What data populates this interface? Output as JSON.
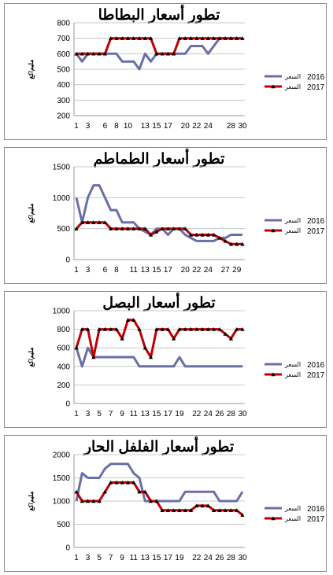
{
  "chart_data": [
    {
      "type": "line",
      "title": "تطور أسعار البطاطا",
      "ylabel": "مليم/كغ",
      "ylim": [
        200,
        800
      ],
      "yticks": [
        200,
        300,
        400,
        500,
        600,
        700,
        800
      ],
      "x": [
        1,
        2,
        3,
        4,
        5,
        6,
        7,
        8,
        9,
        10,
        11,
        12,
        13,
        14,
        15,
        16,
        17,
        18,
        19,
        20,
        21,
        22,
        23,
        24,
        25,
        26,
        27,
        28,
        29,
        30
      ],
      "xtick_labels": [
        "1",
        "3",
        "6",
        "8",
        "10",
        "13",
        "15",
        "17",
        "20",
        "22",
        "24",
        "28",
        "30"
      ],
      "grid": true,
      "legend_position": "right",
      "series": [
        {
          "name": "2016",
          "name_suffix": "السعر",
          "color": "#6b6fa8",
          "marker": "none",
          "values": [
            600,
            550,
            600,
            600,
            600,
            600,
            600,
            600,
            550,
            550,
            550,
            500,
            600,
            550,
            600,
            600,
            600,
            600,
            600,
            600,
            650,
            650,
            650,
            600,
            650,
            700,
            700,
            700,
            700,
            700
          ]
        },
        {
          "name": "2017",
          "name_suffix": "السعر",
          "color": "#c00000",
          "marker": "triangle",
          "values": [
            600,
            600,
            600,
            600,
            600,
            600,
            700,
            700,
            700,
            700,
            700,
            700,
            700,
            700,
            600,
            600,
            600,
            600,
            700,
            700,
            700,
            700,
            700,
            700,
            700,
            700,
            700,
            700,
            700,
            700
          ]
        }
      ]
    },
    {
      "type": "line",
      "title": "تطور أسعار الطماطم",
      "ylabel": "مليم/كغ",
      "ylim": [
        0,
        1500
      ],
      "yticks": [
        0,
        500,
        1000,
        1500
      ],
      "x": [
        1,
        2,
        3,
        4,
        5,
        6,
        7,
        8,
        9,
        10,
        11,
        12,
        13,
        14,
        15,
        16,
        17,
        18,
        19,
        20,
        21,
        22,
        23,
        24,
        25,
        26,
        27,
        28,
        29,
        30
      ],
      "xtick_labels": [
        "1",
        "3",
        "6",
        "8",
        "11",
        "13",
        "15",
        "17",
        "20",
        "22",
        "24",
        "27",
        "29"
      ],
      "grid": true,
      "legend_position": "right",
      "series": [
        {
          "name": "2016",
          "name_suffix": "السعر",
          "color": "#6b6fa8",
          "marker": "none",
          "values": [
            1000,
            600,
            1000,
            1200,
            1200,
            1000,
            800,
            800,
            600,
            600,
            600,
            500,
            450,
            400,
            500,
            500,
            400,
            500,
            500,
            400,
            350,
            300,
            300,
            300,
            300,
            350,
            350,
            400,
            400,
            400
          ]
        },
        {
          "name": "2017",
          "name_suffix": "السعر",
          "color": "#c00000",
          "marker": "triangle",
          "values": [
            500,
            600,
            600,
            600,
            600,
            600,
            500,
            500,
            500,
            500,
            500,
            500,
            500,
            400,
            450,
            500,
            500,
            500,
            500,
            500,
            400,
            400,
            400,
            400,
            400,
            350,
            300,
            250,
            250,
            250
          ]
        }
      ]
    },
    {
      "type": "line",
      "title": "تطور أسعار البصل",
      "ylabel": "مليم/كغ",
      "ylim": [
        0,
        1000
      ],
      "yticks": [
        0,
        200,
        400,
        600,
        800,
        1000
      ],
      "x": [
        1,
        2,
        3,
        4,
        5,
        6,
        7,
        8,
        9,
        10,
        11,
        12,
        13,
        14,
        15,
        16,
        17,
        18,
        19,
        20,
        21,
        22,
        23,
        24,
        25,
        26,
        27,
        28,
        29,
        30
      ],
      "xtick_labels": [
        "1",
        "3",
        "5",
        "7",
        "9",
        "11",
        "13",
        "15",
        "17",
        "19",
        "22",
        "24",
        "26",
        "28",
        "30"
      ],
      "grid": true,
      "legend_position": "right",
      "series": [
        {
          "name": "2016",
          "name_suffix": "السعر",
          "color": "#6b6fa8",
          "marker": "none",
          "values": [
            600,
            400,
            600,
            500,
            500,
            500,
            500,
            500,
            500,
            500,
            500,
            400,
            400,
            400,
            400,
            400,
            400,
            400,
            500,
            400,
            400,
            400,
            400,
            400,
            400,
            400,
            400,
            400,
            400,
            400
          ]
        },
        {
          "name": "2017",
          "name_suffix": "السعر",
          "color": "#c00000",
          "marker": "triangle",
          "values": [
            600,
            800,
            800,
            500,
            800,
            800,
            800,
            800,
            700,
            900,
            900,
            800,
            600,
            500,
            800,
            800,
            800,
            700,
            800,
            800,
            800,
            800,
            800,
            800,
            800,
            800,
            750,
            700,
            800,
            800
          ]
        }
      ]
    },
    {
      "type": "line",
      "title": "تطور أسعار الفلفل الحار",
      "ylabel": "مليم/كغ",
      "ylim": [
        0,
        2000
      ],
      "yticks": [
        0,
        500,
        1000,
        1500,
        2000
      ],
      "x": [
        1,
        2,
        3,
        4,
        5,
        6,
        7,
        8,
        9,
        10,
        11,
        12,
        13,
        14,
        15,
        16,
        17,
        18,
        19,
        20,
        21,
        22,
        23,
        24,
        25,
        26,
        27,
        28,
        29,
        30
      ],
      "xtick_labels": [
        "1",
        "3",
        "5",
        "7",
        "9",
        "11",
        "13",
        "15",
        "17",
        "19",
        "22",
        "24",
        "26",
        "28",
        "30"
      ],
      "grid": true,
      "legend_position": "right",
      "series": [
        {
          "name": "2016",
          "name_suffix": "السعر",
          "color": "#6b6fa8",
          "marker": "none",
          "values": [
            1000,
            1600,
            1500,
            1500,
            1500,
            1700,
            1800,
            1800,
            1800,
            1800,
            1600,
            1500,
            1000,
            1000,
            1000,
            1000,
            1000,
            1000,
            1000,
            1200,
            1200,
            1200,
            1200,
            1200,
            1200,
            1000,
            1000,
            1000,
            1000,
            1200
          ]
        },
        {
          "name": "2017",
          "name_suffix": "السعر",
          "color": "#c00000",
          "marker": "triangle",
          "values": [
            1200,
            1000,
            1000,
            1000,
            1000,
            1200,
            1400,
            1400,
            1400,
            1400,
            1400,
            1200,
            1200,
            1000,
            1000,
            800,
            800,
            800,
            800,
            800,
            800,
            900,
            900,
            900,
            800,
            800,
            800,
            800,
            800,
            700
          ]
        }
      ]
    }
  ]
}
